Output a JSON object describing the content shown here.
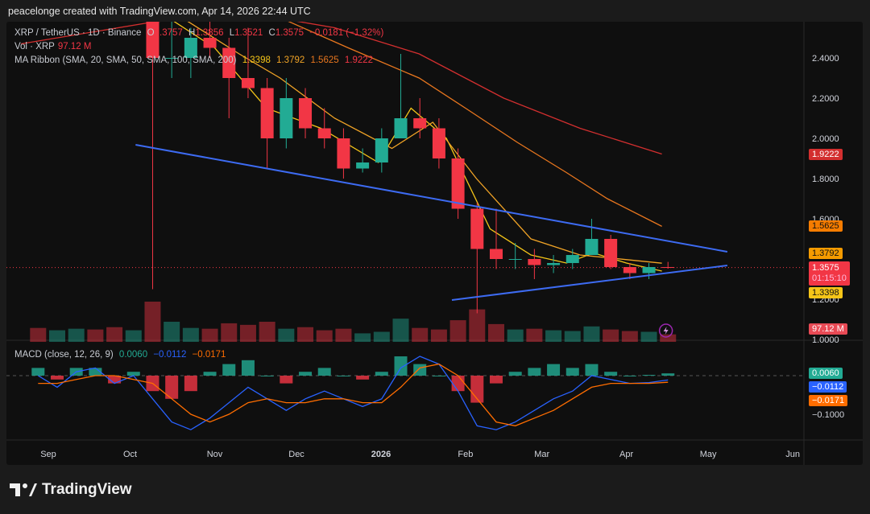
{
  "header": {
    "credit": "peacelonge created with TradingView.com, Apr 14, 2026 22:44 UTC"
  },
  "legend": {
    "symbol": "XRP / TetherUS · 1D · Binance",
    "o_label": "O",
    "o": "1.3757",
    "h_label": "H",
    "h": "1.3856",
    "l_label": "L",
    "l": "1.3521",
    "c_label": "C",
    "c": "1.3575",
    "change": "−0.0181 (−1.32%)",
    "vol_label": "Vol · XRP",
    "vol": "97.12 M",
    "ma_label": "MA Ribbon (SMA, 20, SMA, 50, SMA, 100, SMA, 200)",
    "ma_values": [
      "1.3398",
      "1.3792",
      "1.5625",
      "1.9222"
    ],
    "macd_label": "MACD (close, 12, 26, 9)",
    "macd_values": [
      "0.0060",
      "−0.0112",
      "−0.0171"
    ]
  },
  "axis_tags": {
    "ma200": "1.9222",
    "ma100": "1.5625",
    "ma50": "1.3792",
    "price": "1.3575",
    "countdown": "01:15:10",
    "ma20": "1.3398",
    "volume": "97.12 M",
    "hist": "0.0060",
    "macd": "−0.0112",
    "signal": "−0.0171"
  },
  "colors": {
    "up": "#22ab94",
    "down": "#f23645",
    "ma20": "#f5c518",
    "ma50": "#f0a326",
    "ma100": "#e8761e",
    "ma200": "#d32f2f",
    "trendline": "#3d6bf2",
    "macd": "#2962ff",
    "signal": "#ff6d00"
  },
  "chart_data": {
    "type": "candlestick",
    "note_resolution": "weekly",
    "price_ticks": [
      "2.4000",
      "2.2000",
      "2.0000",
      "1.8000",
      "1.6000",
      "1.2000",
      "1.0000"
    ],
    "price_tick_values": [
      2.4,
      2.2,
      2.0,
      1.8,
      1.6,
      1.2,
      1.0
    ],
    "macd_ticks": [
      "−0.1000"
    ],
    "macd_tick_values": [
      -0.1
    ],
    "x_ticks": [
      "Sep",
      "Oct",
      "Nov",
      "Dec",
      "2026",
      "Feb",
      "Mar",
      "Apr",
      "May",
      "Jun"
    ],
    "x_tick_dates": [
      "2025-09-01",
      "2025-10-01",
      "2025-11-01",
      "2025-12-01",
      "2026-01-01",
      "2026-02-01",
      "2026-03-01",
      "2026-04-01",
      "2026-05-01",
      "2026-06-01"
    ],
    "candles": [
      [
        "2025-08-25",
        2.95,
        3.05,
        2.8,
        2.85,
        180
      ],
      [
        "2025-09-01",
        2.85,
        2.95,
        2.7,
        2.85,
        150
      ],
      [
        "2025-09-08",
        2.85,
        3.15,
        2.85,
        3.05,
        170
      ],
      [
        "2025-09-15",
        3.05,
        3.2,
        2.85,
        2.9,
        160
      ],
      [
        "2025-09-22",
        2.9,
        2.95,
        2.7,
        2.85,
        190
      ],
      [
        "2025-09-29",
        2.85,
        3.1,
        2.8,
        2.95,
        150
      ],
      [
        "2025-10-06",
        2.95,
        3.0,
        1.25,
        2.4,
        520
      ],
      [
        "2025-10-13",
        2.4,
        2.65,
        2.3,
        2.4,
        260
      ],
      [
        "2025-10-20",
        2.4,
        2.55,
        2.3,
        2.5,
        180
      ],
      [
        "2025-10-27",
        2.5,
        2.7,
        2.4,
        2.45,
        170
      ],
      [
        "2025-11-03",
        2.45,
        2.5,
        2.1,
        2.3,
        240
      ],
      [
        "2025-11-10",
        2.3,
        2.55,
        2.2,
        2.25,
        220
      ],
      [
        "2025-11-17",
        2.25,
        2.3,
        1.85,
        2.0,
        260
      ],
      [
        "2025-11-24",
        2.0,
        2.3,
        1.95,
        2.2,
        170
      ],
      [
        "2025-12-01",
        2.2,
        2.25,
        2.0,
        2.05,
        190
      ],
      [
        "2025-12-08",
        2.05,
        2.15,
        1.95,
        2.0,
        150
      ],
      [
        "2025-12-15",
        2.0,
        2.05,
        1.8,
        1.85,
        170
      ],
      [
        "2025-12-22",
        1.85,
        1.95,
        1.83,
        1.88,
        110
      ],
      [
        "2025-12-29",
        1.88,
        2.05,
        1.83,
        2.0,
        130
      ],
      [
        "2026-01-05",
        2.0,
        2.42,
        2.0,
        2.1,
        300
      ],
      [
        "2026-01-12",
        2.1,
        2.2,
        2.0,
        2.05,
        180
      ],
      [
        "2026-01-19",
        2.05,
        2.1,
        1.85,
        1.9,
        160
      ],
      [
        "2026-01-26",
        1.9,
        1.95,
        1.6,
        1.65,
        280
      ],
      [
        "2026-02-02",
        1.65,
        1.68,
        1.13,
        1.45,
        420
      ],
      [
        "2026-02-09",
        1.45,
        1.65,
        1.35,
        1.4,
        230
      ],
      [
        "2026-02-16",
        1.4,
        1.48,
        1.35,
        1.4,
        160
      ],
      [
        "2026-02-23",
        1.4,
        1.45,
        1.3,
        1.37,
        170
      ],
      [
        "2026-03-02",
        1.37,
        1.42,
        1.33,
        1.38,
        150
      ],
      [
        "2026-03-09",
        1.38,
        1.45,
        1.35,
        1.42,
        140
      ],
      [
        "2026-03-16",
        1.42,
        1.6,
        1.42,
        1.5,
        200
      ],
      [
        "2026-03-23",
        1.5,
        1.52,
        1.35,
        1.36,
        160
      ],
      [
        "2026-03-30",
        1.36,
        1.38,
        1.3,
        1.33,
        140
      ],
      [
        "2026-04-06",
        1.33,
        1.38,
        1.3,
        1.36,
        130
      ],
      [
        "2026-04-13",
        1.36,
        1.3856,
        1.3521,
        1.3575,
        97.12
      ]
    ],
    "candle_fields": [
      "week",
      "open",
      "high",
      "low",
      "close",
      "volume_M"
    ],
    "moving_averages": [
      {
        "name": "SMA 20",
        "color": "#f5c518",
        "points": [
          [
            "2025-10-15",
            2.6
          ],
          [
            "2025-11-01",
            2.45
          ],
          [
            "2025-11-20",
            2.15
          ],
          [
            "2025-12-10",
            2.05
          ],
          [
            "2025-12-31",
            1.88
          ],
          [
            "2026-01-12",
            2.15
          ],
          [
            "2026-01-25",
            2.0
          ],
          [
            "2026-02-10",
            1.55
          ],
          [
            "2026-02-25",
            1.42
          ],
          [
            "2026-03-10",
            1.38
          ],
          [
            "2026-03-20",
            1.43
          ],
          [
            "2026-04-01",
            1.38
          ],
          [
            "2026-04-14",
            1.3398
          ]
        ]
      },
      {
        "name": "SMA 50",
        "color": "#f0a326",
        "points": [
          [
            "2025-10-20",
            2.6
          ],
          [
            "2025-11-10",
            2.42
          ],
          [
            "2025-11-25",
            2.3
          ],
          [
            "2025-12-15",
            2.1
          ],
          [
            "2026-01-05",
            1.95
          ],
          [
            "2026-01-20",
            2.08
          ],
          [
            "2026-02-05",
            1.8
          ],
          [
            "2026-02-25",
            1.5
          ],
          [
            "2026-03-15",
            1.42
          ],
          [
            "2026-04-14",
            1.3792
          ]
        ]
      },
      {
        "name": "SMA 100",
        "color": "#e8761e",
        "points": [
          [
            "2025-11-25",
            2.6
          ],
          [
            "2025-12-20",
            2.45
          ],
          [
            "2026-01-15",
            2.3
          ],
          [
            "2026-02-01",
            2.15
          ],
          [
            "2026-02-20",
            1.98
          ],
          [
            "2026-03-10",
            1.83
          ],
          [
            "2026-03-25",
            1.7
          ],
          [
            "2026-04-14",
            1.5625
          ]
        ]
      },
      {
        "name": "SMA 200",
        "color": "#d32f2f",
        "points": [
          [
            "2025-08-22",
            2.47
          ],
          [
            "2025-10-10",
            2.58
          ],
          [
            "2025-11-15",
            2.62
          ],
          [
            "2025-12-15",
            2.55
          ],
          [
            "2026-01-15",
            2.42
          ],
          [
            "2026-02-15",
            2.2
          ],
          [
            "2026-03-15",
            2.05
          ],
          [
            "2026-04-14",
            1.9222
          ]
        ]
      }
    ],
    "trendlines": [
      {
        "from": [
          "2025-10-03",
          1.968
        ],
        "to": [
          "2026-05-08",
          1.436
        ]
      },
      {
        "from": [
          "2026-01-27",
          1.196
        ],
        "to": [
          "2026-05-08",
          1.368
        ]
      }
    ],
    "current_price": 1.3575,
    "macd": [
      [
        "2025-08-25",
        0.0,
        -0.02
      ],
      [
        "2025-09-01",
        -0.03,
        -0.02
      ],
      [
        "2025-09-08",
        0.01,
        -0.01
      ],
      [
        "2025-09-15",
        0.02,
        0.0
      ],
      [
        "2025-09-22",
        -0.02,
        0.0
      ],
      [
        "2025-09-29",
        0.0,
        -0.01
      ],
      [
        "2025-10-06",
        -0.06,
        -0.02
      ],
      [
        "2025-10-13",
        -0.12,
        -0.06
      ],
      [
        "2025-10-20",
        -0.14,
        -0.1
      ],
      [
        "2025-10-27",
        -0.11,
        -0.12
      ],
      [
        "2025-11-03",
        -0.07,
        -0.1
      ],
      [
        "2025-11-10",
        -0.03,
        -0.07
      ],
      [
        "2025-11-17",
        -0.06,
        -0.06
      ],
      [
        "2025-11-24",
        -0.09,
        -0.07
      ],
      [
        "2025-12-01",
        -0.06,
        -0.07
      ],
      [
        "2025-12-08",
        -0.04,
        -0.06
      ],
      [
        "2025-12-15",
        -0.06,
        -0.06
      ],
      [
        "2025-12-22",
        -0.08,
        -0.07
      ],
      [
        "2025-12-29",
        -0.06,
        -0.07
      ],
      [
        "2026-01-05",
        0.02,
        -0.03
      ],
      [
        "2026-01-12",
        0.05,
        0.02
      ],
      [
        "2026-01-19",
        0.03,
        0.03
      ],
      [
        "2026-01-26",
        -0.04,
        0.0
      ],
      [
        "2026-02-02",
        -0.13,
        -0.06
      ],
      [
        "2026-02-09",
        -0.14,
        -0.12
      ],
      [
        "2026-02-16",
        -0.12,
        -0.13
      ],
      [
        "2026-02-23",
        -0.09,
        -0.11
      ],
      [
        "2026-03-02",
        -0.06,
        -0.09
      ],
      [
        "2026-03-09",
        -0.04,
        -0.06
      ],
      [
        "2026-03-16",
        0.0,
        -0.03
      ],
      [
        "2026-03-23",
        -0.01,
        -0.02
      ],
      [
        "2026-03-30",
        -0.02,
        -0.02
      ],
      [
        "2026-04-06",
        -0.018,
        -0.02
      ],
      [
        "2026-04-13",
        -0.0112,
        -0.0171
      ]
    ],
    "macd_fields": [
      "week",
      "macd",
      "signal"
    ]
  },
  "footer": {
    "brand": "TradingView"
  }
}
